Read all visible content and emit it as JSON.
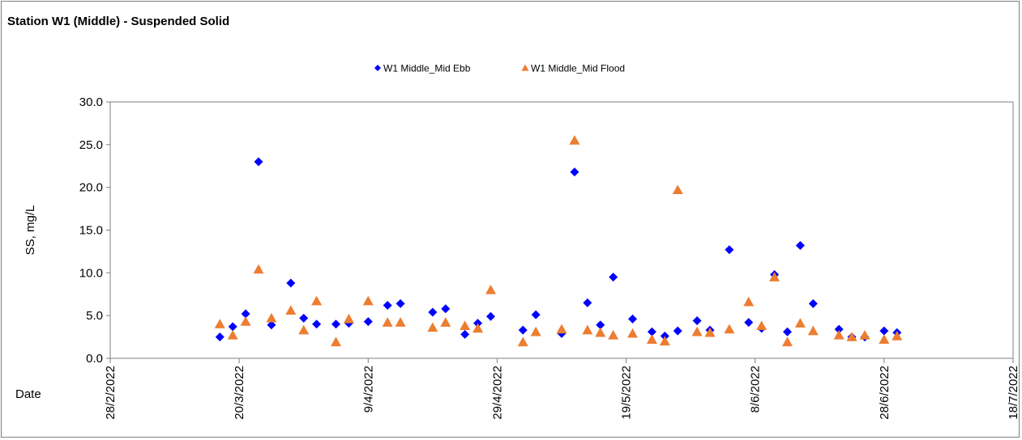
{
  "chart_data": {
    "type": "scatter",
    "title": "Station W1 (Middle) - Suspended Solid",
    "xlabel": "Date",
    "ylabel": "SS, mg/L",
    "x_axis": {
      "type": "date",
      "min": "2022-02-28",
      "max": "2022-07-18",
      "tick_labels": [
        "28/2/2022",
        "20/3/2022",
        "9/4/2022",
        "29/4/2022",
        "19/5/2022",
        "8/6/2022",
        "28/6/2022",
        "18/7/2022"
      ]
    },
    "y_axis": {
      "min": 0,
      "max": 30,
      "tick_labels": [
        "0.0",
        "5.0",
        "10.0",
        "15.0",
        "20.0",
        "25.0",
        "30.0"
      ]
    },
    "grid": false,
    "legend_position": "top-center",
    "series": [
      {
        "name": "W1 Middle_Mid Ebb",
        "marker": "diamond",
        "color": "#0000ff",
        "points": [
          [
            "2022-03-17",
            2.5
          ],
          [
            "2022-03-19",
            3.7
          ],
          [
            "2022-03-21",
            5.2
          ],
          [
            "2022-03-23",
            23.0
          ],
          [
            "2022-03-25",
            3.9
          ],
          [
            "2022-03-28",
            8.8
          ],
          [
            "2022-03-30",
            4.7
          ],
          [
            "2022-04-01",
            4.0
          ],
          [
            "2022-04-04",
            4.0
          ],
          [
            "2022-04-06",
            4.1
          ],
          [
            "2022-04-09",
            4.3
          ],
          [
            "2022-04-12",
            6.2
          ],
          [
            "2022-04-14",
            6.4
          ],
          [
            "2022-04-19",
            5.4
          ],
          [
            "2022-04-21",
            5.8
          ],
          [
            "2022-04-24",
            2.8
          ],
          [
            "2022-04-26",
            4.1
          ],
          [
            "2022-04-28",
            4.9
          ],
          [
            "2022-05-03",
            3.3
          ],
          [
            "2022-05-05",
            5.1
          ],
          [
            "2022-05-09",
            2.9
          ],
          [
            "2022-05-11",
            21.8
          ],
          [
            "2022-05-13",
            6.5
          ],
          [
            "2022-05-15",
            3.9
          ],
          [
            "2022-05-17",
            9.5
          ],
          [
            "2022-05-20",
            4.6
          ],
          [
            "2022-05-23",
            3.1
          ],
          [
            "2022-05-25",
            2.6
          ],
          [
            "2022-05-27",
            3.2
          ],
          [
            "2022-05-30",
            4.4
          ],
          [
            "2022-06-01",
            3.3
          ],
          [
            "2022-06-04",
            12.7
          ],
          [
            "2022-06-07",
            4.2
          ],
          [
            "2022-06-09",
            3.5
          ],
          [
            "2022-06-11",
            9.8
          ],
          [
            "2022-06-13",
            3.1
          ],
          [
            "2022-06-15",
            13.2
          ],
          [
            "2022-06-17",
            6.4
          ],
          [
            "2022-06-21",
            3.4
          ],
          [
            "2022-06-23",
            2.5
          ],
          [
            "2022-06-25",
            2.5
          ],
          [
            "2022-06-28",
            3.2
          ],
          [
            "2022-06-30",
            3.0
          ]
        ]
      },
      {
        "name": "W1 Middle_Mid Flood",
        "marker": "triangle",
        "color": "#ed7d31",
        "points": [
          [
            "2022-03-17",
            4.0
          ],
          [
            "2022-03-19",
            2.7
          ],
          [
            "2022-03-21",
            4.3
          ],
          [
            "2022-03-23",
            10.4
          ],
          [
            "2022-03-25",
            4.7
          ],
          [
            "2022-03-28",
            5.6
          ],
          [
            "2022-03-30",
            3.3
          ],
          [
            "2022-04-01",
            6.7
          ],
          [
            "2022-04-04",
            1.9
          ],
          [
            "2022-04-06",
            4.6
          ],
          [
            "2022-04-09",
            6.7
          ],
          [
            "2022-04-12",
            4.2
          ],
          [
            "2022-04-14",
            4.2
          ],
          [
            "2022-04-19",
            3.6
          ],
          [
            "2022-04-21",
            4.2
          ],
          [
            "2022-04-24",
            3.8
          ],
          [
            "2022-04-26",
            3.5
          ],
          [
            "2022-04-28",
            8.0
          ],
          [
            "2022-05-03",
            1.9
          ],
          [
            "2022-05-05",
            3.1
          ],
          [
            "2022-05-09",
            3.4
          ],
          [
            "2022-05-11",
            25.5
          ],
          [
            "2022-05-13",
            3.3
          ],
          [
            "2022-05-15",
            3.0
          ],
          [
            "2022-05-17",
            2.7
          ],
          [
            "2022-05-20",
            2.9
          ],
          [
            "2022-05-23",
            2.2
          ],
          [
            "2022-05-25",
            2.0
          ],
          [
            "2022-05-27",
            19.7
          ],
          [
            "2022-05-30",
            3.1
          ],
          [
            "2022-06-01",
            3.0
          ],
          [
            "2022-06-04",
            3.4
          ],
          [
            "2022-06-07",
            6.6
          ],
          [
            "2022-06-09",
            3.8
          ],
          [
            "2022-06-11",
            9.5
          ],
          [
            "2022-06-13",
            1.9
          ],
          [
            "2022-06-15",
            4.1
          ],
          [
            "2022-06-17",
            3.2
          ],
          [
            "2022-06-21",
            2.7
          ],
          [
            "2022-06-23",
            2.5
          ],
          [
            "2022-06-25",
            2.7
          ],
          [
            "2022-06-28",
            2.2
          ],
          [
            "2022-06-30",
            2.6
          ]
        ]
      }
    ]
  }
}
